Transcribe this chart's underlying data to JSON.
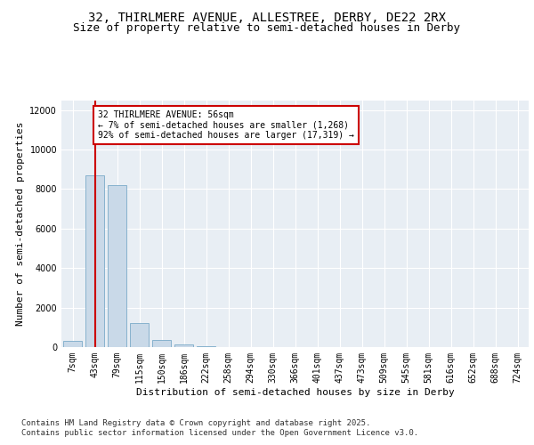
{
  "title_line1": "32, THIRLMERE AVENUE, ALLESTREE, DERBY, DE22 2RX",
  "title_line2": "Size of property relative to semi-detached houses in Derby",
  "xlabel": "Distribution of semi-detached houses by size in Derby",
  "ylabel": "Number of semi-detached properties",
  "bins": [
    "7sqm",
    "43sqm",
    "79sqm",
    "115sqm",
    "150sqm",
    "186sqm",
    "222sqm",
    "258sqm",
    "294sqm",
    "330sqm",
    "366sqm",
    "401sqm",
    "437sqm",
    "473sqm",
    "509sqm",
    "545sqm",
    "581sqm",
    "616sqm",
    "652sqm",
    "688sqm",
    "724sqm"
  ],
  "values": [
    300,
    8700,
    8200,
    1200,
    350,
    150,
    50,
    10,
    5,
    3,
    2,
    1,
    1,
    0,
    0,
    0,
    0,
    0,
    0,
    0,
    0
  ],
  "bar_color": "#c9d9e8",
  "bar_edge_color": "#7aaac8",
  "vline_x": 1,
  "vline_color": "#cc0000",
  "property_label": "32 THIRLMERE AVENUE: 56sqm",
  "smaller_pct": "← 7% of semi-detached houses are smaller (1,268)",
  "larger_pct": "92% of semi-detached houses are larger (17,319) →",
  "annotation_box_color": "#cc0000",
  "ylim": [
    0,
    12500
  ],
  "yticks": [
    0,
    2000,
    4000,
    6000,
    8000,
    10000,
    12000
  ],
  "background_color": "#e8eef4",
  "plot_background": "#e8eef4",
  "footer_line1": "Contains HM Land Registry data © Crown copyright and database right 2025.",
  "footer_line2": "Contains public sector information licensed under the Open Government Licence v3.0.",
  "title_fontsize": 10,
  "subtitle_fontsize": 9,
  "axis_label_fontsize": 8,
  "tick_fontsize": 7,
  "footer_fontsize": 6.5
}
